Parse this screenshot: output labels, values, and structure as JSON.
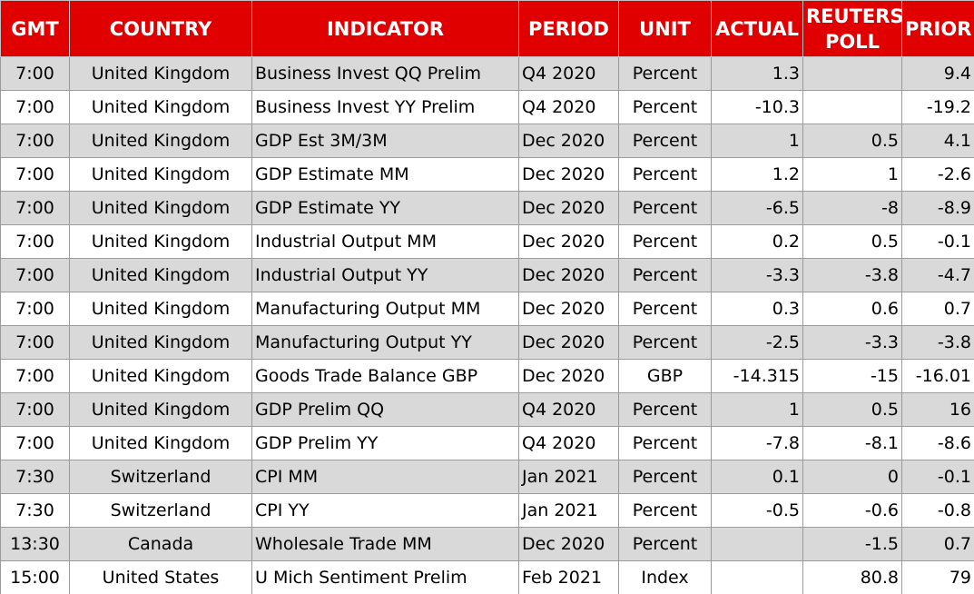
{
  "table": {
    "header": [
      "GMT",
      "COUNTRY",
      "INDICATOR",
      "PERIOD",
      "UNIT",
      "ACTUAL",
      "REUTERS POLL",
      "PRIOR"
    ],
    "rows": [
      [
        "7:00",
        "United Kingdom",
        "Business Invest QQ Prelim",
        "Q4 2020",
        "Percent",
        "1.3",
        null,
        "9.4"
      ],
      [
        "7:00",
        "United Kingdom",
        "Business Invest YY Prelim",
        "Q4 2020",
        "Percent",
        "-10.3",
        null,
        "-19.2"
      ],
      [
        "7:00",
        "United Kingdom",
        "GDP Est 3M/3M",
        "Dec 2020",
        "Percent",
        "1",
        "0.5",
        "4.1"
      ],
      [
        "7:00",
        "United Kingdom",
        "GDP Estimate MM",
        "Dec 2020",
        "Percent",
        "1.2",
        "1",
        "-2.6"
      ],
      [
        "7:00",
        "United Kingdom",
        "GDP Estimate YY",
        "Dec 2020",
        "Percent",
        "-6.5",
        "-8",
        "-8.9"
      ],
      [
        "7:00",
        "United Kingdom",
        "Industrial Output MM",
        "Dec 2020",
        "Percent",
        "0.2",
        "0.5",
        "-0.1"
      ],
      [
        "7:00",
        "United Kingdom",
        "Industrial Output YY",
        "Dec 2020",
        "Percent",
        "-3.3",
        "-3.8",
        "-4.7"
      ],
      [
        "7:00",
        "United Kingdom",
        "Manufacturing Output MM",
        "Dec 2020",
        "Percent",
        "0.3",
        "0.6",
        "0.7"
      ],
      [
        "7:00",
        "United Kingdom",
        "Manufacturing Output YY",
        "Dec 2020",
        "Percent",
        "-2.5",
        "-3.3",
        "-3.8"
      ],
      [
        "7:00",
        "United Kingdom",
        "Goods Trade Balance GBP",
        "Dec 2020",
        "GBP",
        "-14.315",
        "-15",
        "-16.01"
      ],
      [
        "7:00",
        "United Kingdom",
        "GDP Prelim QQ",
        "Q4 2020",
        "Percent",
        "1",
        "0.5",
        "16"
      ],
      [
        "7:00",
        "United Kingdom",
        "GDP Prelim YY",
        "Q4 2020",
        "Percent",
        "-7.8",
        "-8.1",
        "-8.6"
      ],
      [
        "7:30",
        "Switzerland",
        "CPI MM",
        "Jan 2021",
        "Percent",
        "0.1",
        "0",
        "-0.1"
      ],
      [
        "7:30",
        "Switzerland",
        "CPI YY",
        "Jan 2021",
        "Percent",
        "-0.5",
        "-0.6",
        "-0.8"
      ],
      [
        "13:30",
        "Canada",
        "Wholesale Trade MM",
        "Dec 2020",
        "Percent",
        null,
        "-1.5",
        "0.7"
      ],
      [
        "15:00",
        "United States",
        "U Mich Sentiment Prelim",
        "Feb 2021",
        "Index",
        null,
        "80.8",
        "79"
      ]
    ]
  }
}
